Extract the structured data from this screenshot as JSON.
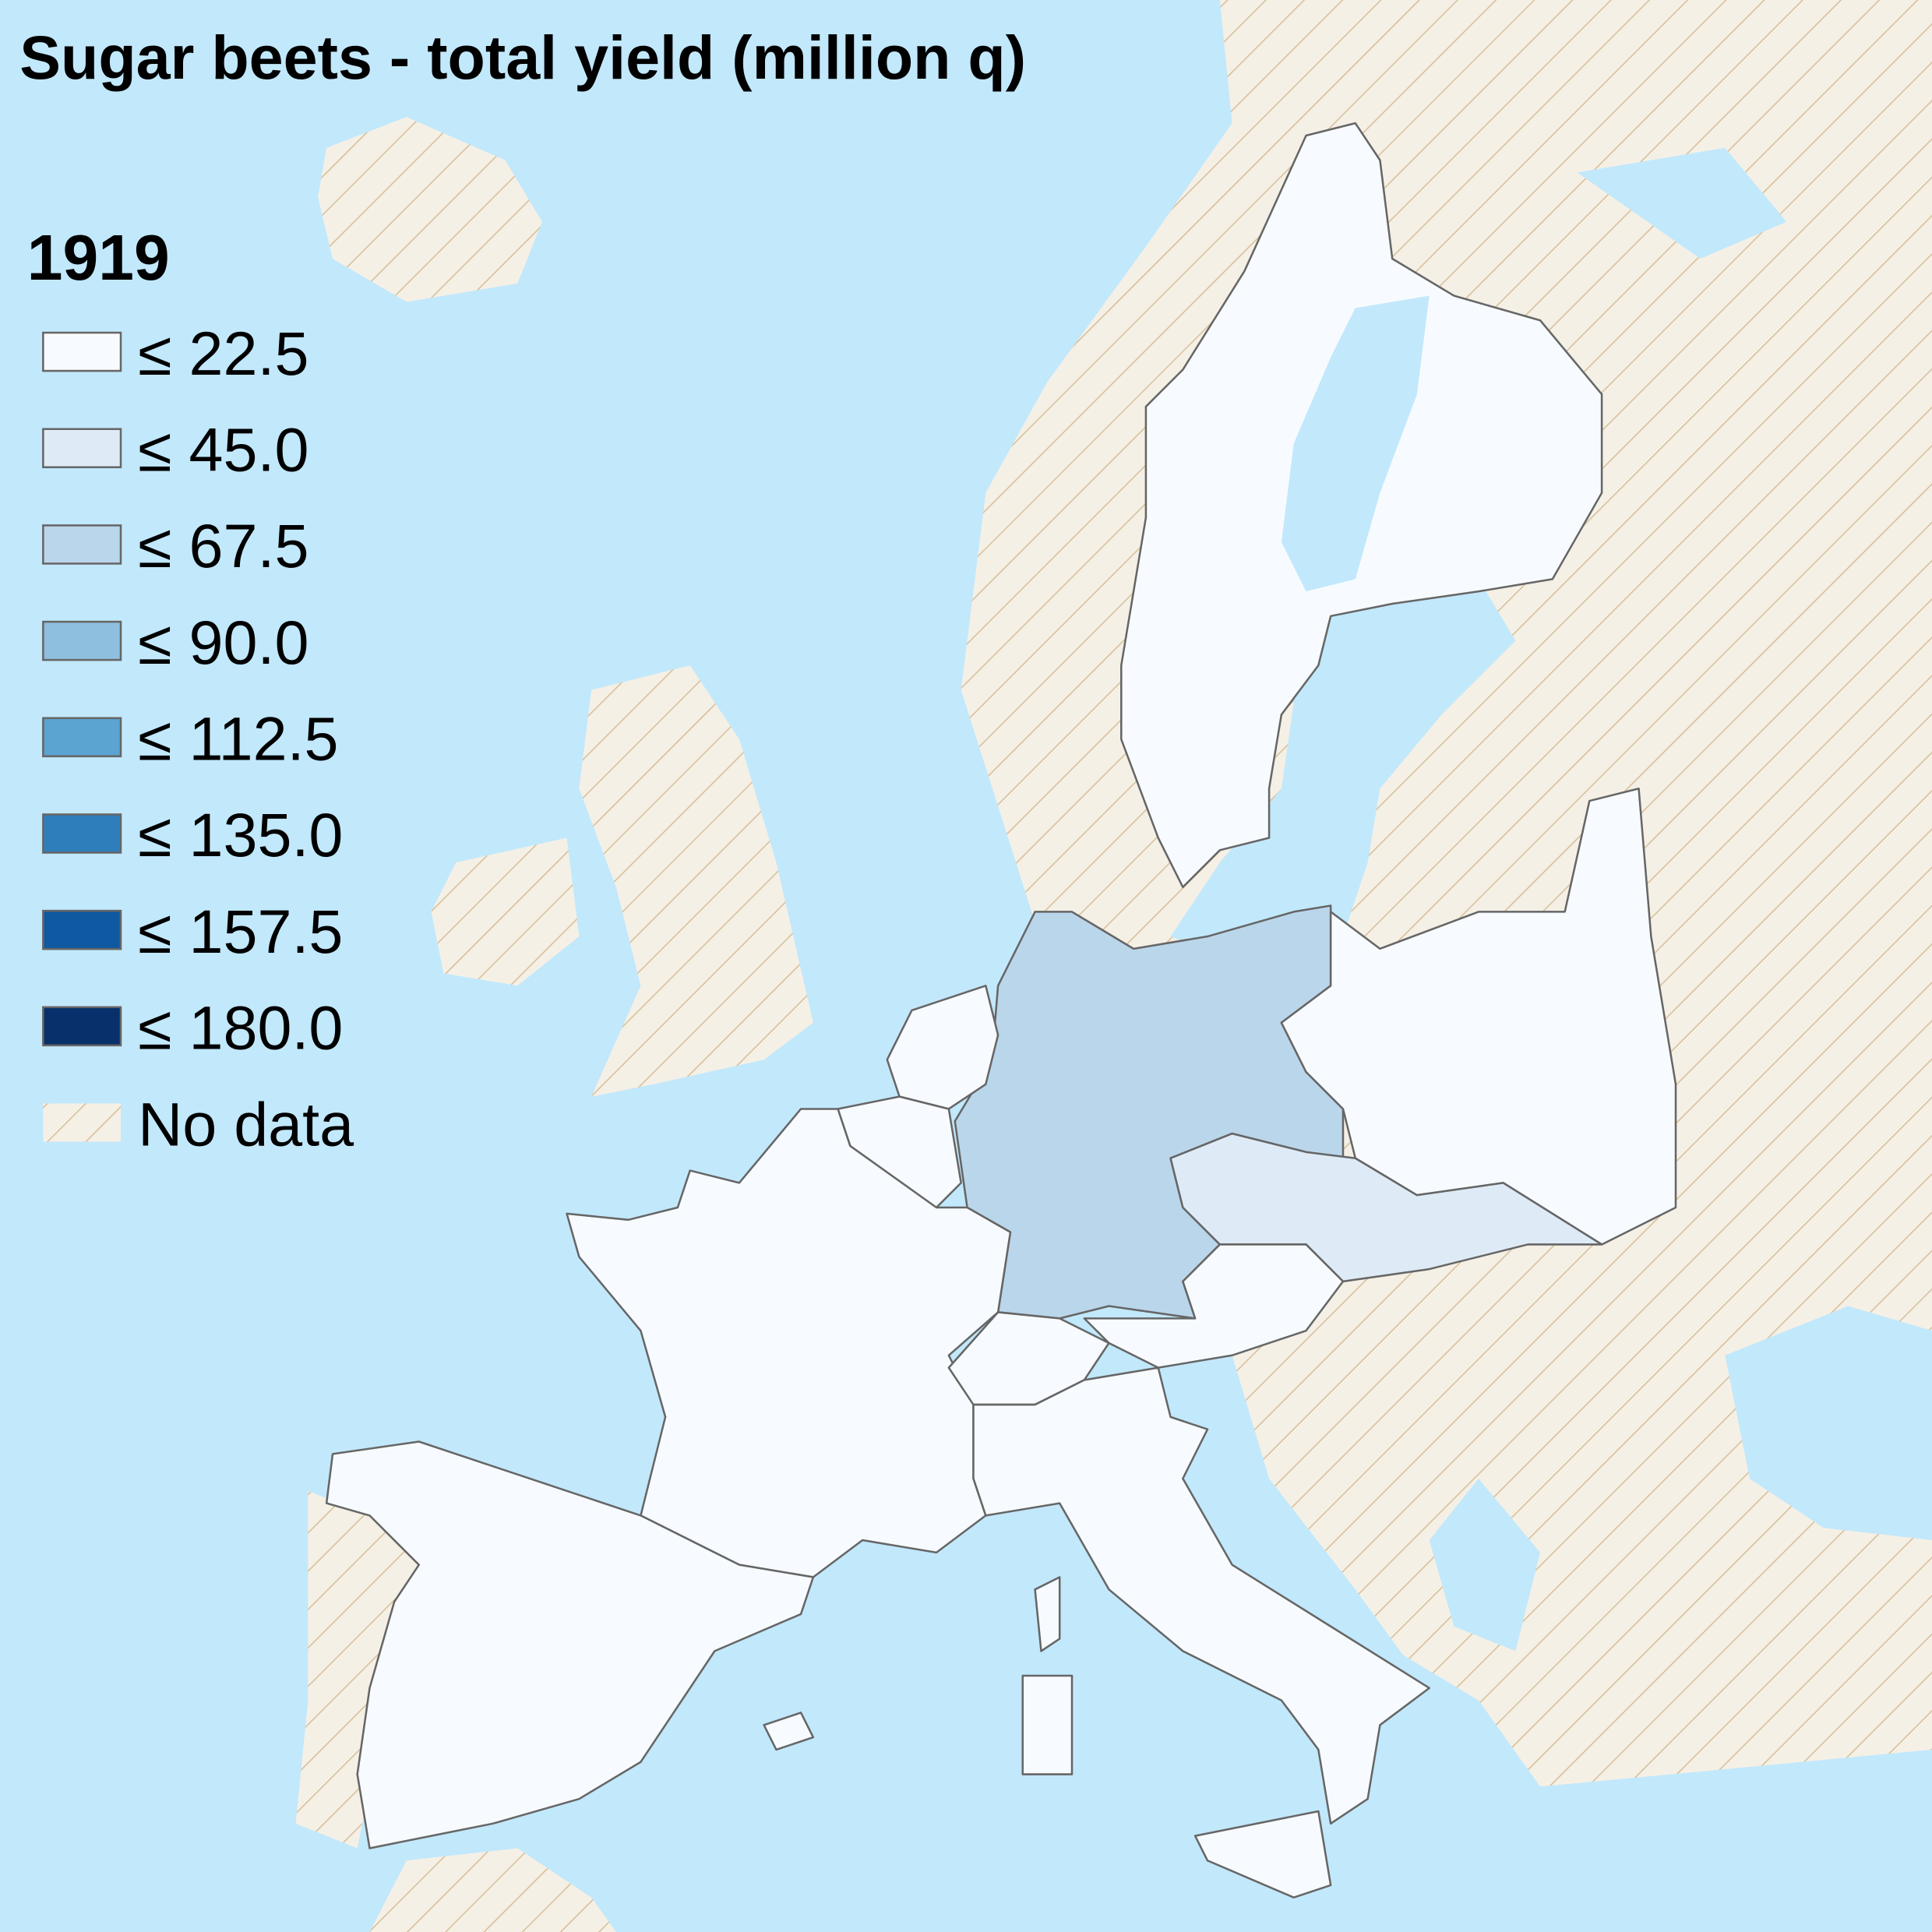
{
  "title": "Sugar beets - total yield (million q)",
  "legend": {
    "title": "1919",
    "items": [
      {
        "label": "≤ 22.5",
        "color": "#f7fbff"
      },
      {
        "label": "≤ 45.0",
        "color": "#deebf7"
      },
      {
        "label": "≤ 67.5",
        "color": "#bad6eb"
      },
      {
        "label": "≤ 90.0",
        "color": "#8fbfde"
      },
      {
        "label": "≤ 112.5",
        "color": "#5ba3d0"
      },
      {
        "label": "≤ 135.0",
        "color": "#2f7ebc"
      },
      {
        "label": "≤ 157.5",
        "color": "#0e59a2"
      },
      {
        "label": "≤ 180.0",
        "color": "#08306b"
      }
    ],
    "no_data": "No data"
  }
}
